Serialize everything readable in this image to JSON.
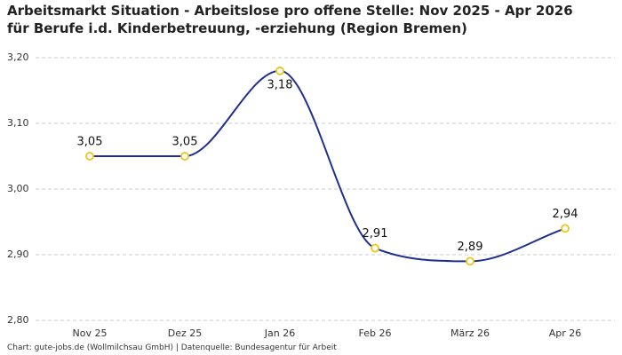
{
  "chart_data": {
    "type": "line",
    "title": "Arbeitsmarkt Situation - Arbeitslose pro offene Stelle: Nov 2025 - Apr 2026 für Berufe i.d. Kinderbetreuung, -erziehung (Region Bremen)",
    "footer": "Chart: gute-jobs.de (Wollmilchsau GmbH) | Datenquelle: Bundesagentur für Arbeit",
    "categories": [
      "Nov 25",
      "Dez 25",
      "Jan 26",
      "Feb 26",
      "März 26",
      "Apr 26"
    ],
    "values": [
      3.05,
      3.05,
      3.18,
      2.91,
      2.89,
      2.94
    ],
    "value_labels": [
      "3,05",
      "3,05",
      "3,18",
      "2,91",
      "2,89",
      "2,94"
    ],
    "color": "#1f2f8f",
    "marker_color": "#f0c419",
    "ylim": [
      2.8,
      3.2
    ],
    "yticks": [
      {
        "value": 2.8,
        "label": "2,80"
      },
      {
        "value": 2.9,
        "label": "2,90"
      },
      {
        "value": 3.0,
        "label": "3,00"
      },
      {
        "value": 3.1,
        "label": "3,10"
      },
      {
        "value": 3.2,
        "label": "3,20"
      }
    ],
    "grid": true
  }
}
